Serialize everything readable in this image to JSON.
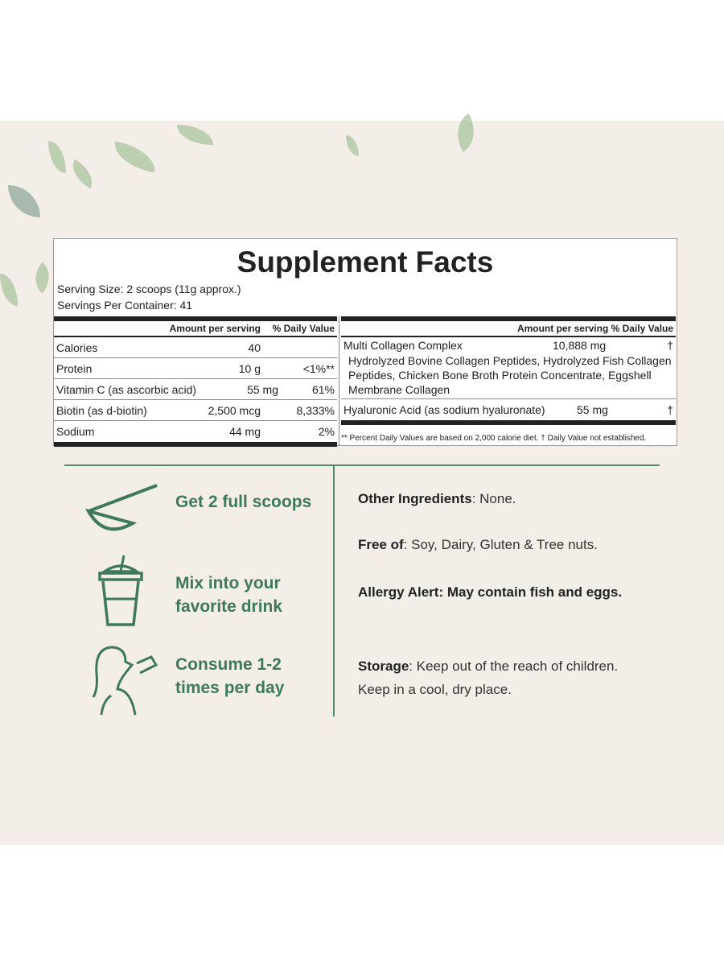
{
  "facts": {
    "title": "Supplement Facts",
    "serving_size": "Serving Size: 2 scoops (11g approx.)",
    "servings_per_container": "Servings Per Container: 41",
    "left_header": {
      "amount": "Amount per serving",
      "dv": "% Daily Value"
    },
    "left_rows": [
      {
        "name": "Calories",
        "amount": "40",
        "dv": ""
      },
      {
        "name": "Protein",
        "amount": "10 g",
        "dv": "<1%**"
      },
      {
        "name": "Vitamin C (as ascorbic acid)",
        "amount": "55 mg",
        "dv": "61%"
      },
      {
        "name": "Biotin (as d-biotin)",
        "amount": "2,500 mcg",
        "dv": "8,333%"
      },
      {
        "name": "Sodium",
        "amount": "44 mg",
        "dv": "2%"
      }
    ],
    "right_header": "Amount per serving % Daily Value",
    "right_rows": [
      {
        "name": "Multi Collagen Complex",
        "amount": "10,888 mg",
        "dv": "†",
        "sub": "Hydrolyzed Bovine Collagen Peptides, Hydrolyzed Fish Collagen Peptides, Chicken Bone Broth Protein Concentrate, Eggshell Membrane Collagen"
      },
      {
        "name": "Hyaluronic Acid (as sodium hyaluronate)",
        "amount": "55 mg",
        "dv": "†"
      }
    ],
    "footnote": "** Percent Daily Values are based on 2,000 calorie diet. † Daily Value not established."
  },
  "steps": [
    {
      "icon": "scoop-icon",
      "text": "Get 2 full scoops"
    },
    {
      "icon": "drink-cup-icon",
      "text": "Mix into your favorite drink"
    },
    {
      "icon": "person-drinking-icon",
      "text": "Consume 1-2 times per day"
    }
  ],
  "info": [
    {
      "label": "Other Ingredients",
      "text": ": None."
    },
    {
      "label": "Free of",
      "text": ": Soy, Dairy, Gluten & Tree nuts."
    },
    {
      "label": "Allergy Alert: May contain fish and eggs.",
      "text": ""
    },
    {
      "label": "Storage",
      "text": ": Keep out of the reach of children. Keep in a cool, dry place."
    }
  ],
  "colors": {
    "accent": "#3d7a5a",
    "background": "#f3eee8"
  }
}
